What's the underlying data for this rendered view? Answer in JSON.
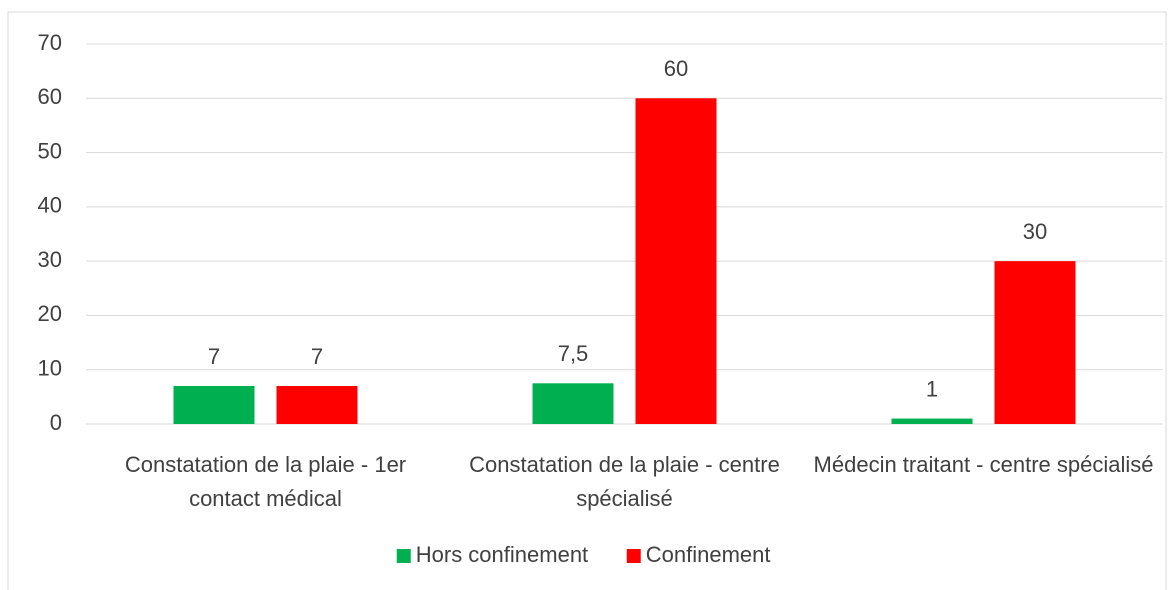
{
  "chart_data": {
    "type": "bar",
    "categories": [
      "Constatation de la plaie - 1er contact médical",
      "Constatation de la plaie - centre spécialisé",
      "Médecin traitant - centre spécialisé"
    ],
    "series": [
      {
        "name": "Hors confinement",
        "color": "#00b050",
        "values": [
          7,
          7.5,
          1
        ],
        "value_labels": [
          "7",
          "7,5",
          "1"
        ]
      },
      {
        "name": "Confinement",
        "color": "#ff0000",
        "values": [
          7,
          60,
          30
        ],
        "value_labels": [
          "7",
          "60",
          "30"
        ]
      }
    ],
    "ylim": [
      0,
      70
    ],
    "yticks": [
      0,
      10,
      20,
      30,
      40,
      50,
      60,
      70
    ],
    "grid": true,
    "legend": "bottom"
  }
}
